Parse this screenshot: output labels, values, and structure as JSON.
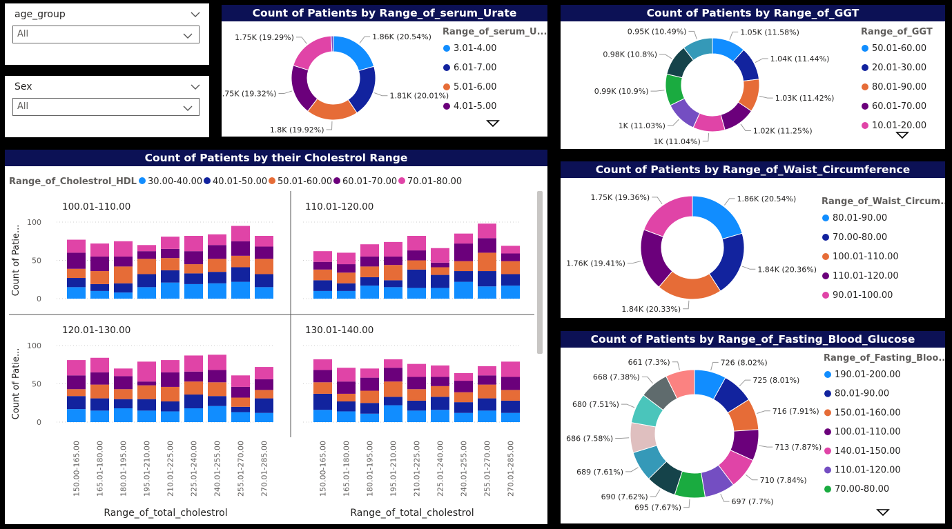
{
  "slicers": [
    {
      "label": "age_group",
      "value": "All"
    },
    {
      "label": "Sex",
      "value": "All"
    }
  ],
  "colors": {
    "title_bg": "#0c1155",
    "c_blue": "#118dff",
    "c_navy": "#12239e",
    "c_orange": "#e66c37",
    "c_purple": "#6b007b",
    "c_pink": "#e044a7",
    "c_violet": "#744ec2",
    "c_green": "#1aab40",
    "c_darkteal": "#15434a",
    "c_teal": "#3599b8",
    "c_rose": "#dfbfbf",
    "c_aqua": "#4ac5bb",
    "c_gray": "#5f6b6d",
    "c_salmon": "#fb8281",
    "c_slateblue": "#3a9ac9"
  },
  "chart_data": [
    {
      "id": "urate",
      "type": "pie",
      "title": "Count of Patients by Range_of_serum_Urate",
      "legend_title": "Range_of_serum_U...",
      "slices": [
        {
          "name": "3.01-4.00",
          "value": 1.86,
          "label": "1.86K (20.54%)",
          "color": "#118dff",
          "legend": true
        },
        {
          "name": "6.01-7.00",
          "value": 1.81,
          "label": "1.81K (20.01%)",
          "color": "#12239e",
          "legend": true
        },
        {
          "name": "5.01-6.00",
          "value": 1.8,
          "label": "1.8K (19.92%)",
          "color": "#e66c37",
          "legend": true
        },
        {
          "name": "4.01-5.00",
          "value": 1.75,
          "label": "1.75K (19.32%)",
          "color": "#6b007b",
          "legend": true
        },
        {
          "name": "",
          "value": 1.746,
          "label": "1.75K (19.29%)",
          "color": "#e044a7",
          "legend": false
        },
        {
          "name": "",
          "value": 0.08,
          "label": "",
          "color": "#744ec2",
          "legend": false
        }
      ]
    },
    {
      "id": "ggt",
      "type": "pie",
      "title": "Count of Patients by Range_of_GGT",
      "legend_title": "Range_of_GGT",
      "slices": [
        {
          "name": "50.01-60.00",
          "value": 1.05,
          "label": "1.05K (11.58%)",
          "color": "#118dff",
          "legend": true
        },
        {
          "name": "20.01-30.00",
          "value": 1.04,
          "label": "1.04K (11.44%)",
          "color": "#12239e",
          "legend": true
        },
        {
          "name": "80.01-90.00",
          "value": 1.03,
          "label": "1.03K (11.42%)",
          "color": "#e66c37",
          "legend": true
        },
        {
          "name": "60.01-70.00",
          "value": 1.02,
          "label": "1.02K (11.25%)",
          "color": "#6b007b",
          "legend": true
        },
        {
          "name": "10.01-20.00",
          "value": 1.0,
          "label": "1K (11.04%)",
          "color": "#e044a7",
          "legend": true
        },
        {
          "name": "",
          "value": 1.0,
          "label": "1K (11.03%)",
          "color": "#744ec2",
          "legend": false
        },
        {
          "name": "",
          "value": 0.99,
          "label": "0.99K (10.9%)",
          "color": "#1aab40",
          "legend": false
        },
        {
          "name": "",
          "value": 0.98,
          "label": "0.98K (10.8%)",
          "color": "#15434a",
          "legend": false
        },
        {
          "name": "",
          "value": 0.95,
          "label": "0.95K (10.49%)",
          "color": "#3599b8",
          "legend": false
        }
      ]
    },
    {
      "id": "waist",
      "type": "pie",
      "title": "Count of Patients by Range_of_Waist_Circumference",
      "legend_title": "Range_of_Waist_Circum...",
      "slices": [
        {
          "name": "80.01-90.00",
          "value": 1.86,
          "label": "1.86K (20.54%)",
          "color": "#118dff",
          "legend": true
        },
        {
          "name": "70.00-80.00",
          "value": 1.84,
          "label": "1.84K (20.36%)",
          "color": "#12239e",
          "legend": true
        },
        {
          "name": "100.01-110.00",
          "value": 1.84,
          "label": "1.84K (20.33%)",
          "color": "#e66c37",
          "legend": true
        },
        {
          "name": "110.01-120.00",
          "value": 1.76,
          "label": "1.76K (19.41%)",
          "color": "#6b007b",
          "legend": true
        },
        {
          "name": "90.01-100.00",
          "value": 1.75,
          "label": "1.75K (19.36%)",
          "color": "#e044a7",
          "legend": true
        }
      ]
    },
    {
      "id": "glucose",
      "type": "pie",
      "title": "Count of Patients by Range_of_Fasting_Blood_Glucose",
      "legend_title": "Range_of_Fasting_Bloo...",
      "slices": [
        {
          "name": "190.01-200.00",
          "value": 726,
          "label": "726 (8.02%)",
          "color": "#118dff",
          "legend": true
        },
        {
          "name": "80.01-90.00",
          "value": 725,
          "label": "725 (8.01%)",
          "color": "#12239e",
          "legend": true
        },
        {
          "name": "150.01-160.00",
          "value": 716,
          "label": "716 (7.91%)",
          "color": "#e66c37",
          "legend": true
        },
        {
          "name": "100.01-110.00",
          "value": 713,
          "label": "713 (7.87%)",
          "color": "#6b007b",
          "legend": true
        },
        {
          "name": "140.01-150.00",
          "value": 710,
          "label": "710 (7.84%)",
          "color": "#e044a7",
          "legend": true
        },
        {
          "name": "110.01-120.00",
          "value": 697,
          "label": "697 (7.7%)",
          "color": "#744ec2",
          "legend": true
        },
        {
          "name": "70.00-80.00",
          "value": 695,
          "label": "695 (7.67%)",
          "color": "#1aab40",
          "legend": true
        },
        {
          "name": "",
          "value": 690,
          "label": "690 (7.62%)",
          "color": "#15434a",
          "legend": false
        },
        {
          "name": "",
          "value": 689,
          "label": "689 (7.61%)",
          "color": "#3599b8",
          "legend": false
        },
        {
          "name": "",
          "value": 686,
          "label": "686 (7.58%)",
          "color": "#dfbfbf",
          "legend": false
        },
        {
          "name": "",
          "value": 680,
          "label": "680 (7.51%)",
          "color": "#4ac5bb",
          "legend": false
        },
        {
          "name": "",
          "value": 668,
          "label": "668 (7.38%)",
          "color": "#5f6b6d",
          "legend": false
        },
        {
          "name": "",
          "value": 661,
          "label": "661 (7.3%)",
          "color": "#fb8281",
          "legend": false
        }
      ]
    },
    {
      "id": "cholestrol",
      "type": "bar",
      "stacked": true,
      "title": "Count of Patients by their Cholestrol Range",
      "legend_title": "Range_of_Cholestrol_HDL",
      "xlabel": "Range_of_total_cholestrol",
      "ylabel": "Count of Patie...",
      "ylim": [
        0,
        100
      ],
      "yticks": [
        0,
        50,
        100
      ],
      "categories": [
        "150.00-165.00",
        "165.01-180.00",
        "180.01-195.00",
        "195.01-210.00",
        "210.01-225.00",
        "225.01-240.00",
        "240.01-255.00",
        "255.01-270.00",
        "270.01-285.00"
      ],
      "series": [
        {
          "name": "30.00-40.00",
          "color": "#118dff"
        },
        {
          "name": "40.01-50.00",
          "color": "#12239e"
        },
        {
          "name": "50.01-60.00",
          "color": "#e66c37"
        },
        {
          "name": "60.01-70.00",
          "color": "#6b007b"
        },
        {
          "name": "70.01-80.00",
          "color": "#e044a7"
        }
      ],
      "facets": [
        {
          "title": "100.01-110.00",
          "values": [
            [
              15,
              12,
              12,
              21,
              17
            ],
            [
              10,
              9,
              17,
              19,
              17
            ],
            [
              8,
              12,
              22,
              13,
              20
            ],
            [
              15,
              17,
              20,
              10,
              8
            ],
            [
              21,
              16,
              16,
              12,
              16
            ],
            [
              19,
              14,
              12,
              17,
              20
            ],
            [
              20,
              15,
              17,
              18,
              14
            ],
            [
              22,
              19,
              15,
              19,
              20
            ],
            [
              15,
              17,
              20,
              16,
              14
            ]
          ]
        },
        {
          "title": "110.01-120.00",
          "values": [
            [
              10,
              14,
              14,
              10,
              14
            ],
            [
              10,
              10,
              14,
              11,
              15
            ],
            [
              17,
              11,
              14,
              13,
              16
            ],
            [
              15,
              9,
              20,
              11,
              19
            ],
            [
              14,
              24,
              12,
              13,
              19
            ],
            [
              14,
              17,
              10,
              6,
              19
            ],
            [
              22,
              14,
              13,
              23,
              13
            ],
            [
              16,
              20,
              24,
              19,
              19
            ],
            [
              17,
              15,
              17,
              10,
              10
            ]
          ]
        },
        {
          "title": "120.01-130.00",
          "values": [
            [
              17,
              17,
              9,
              18,
              20
            ],
            [
              15,
              16,
              18,
              16,
              19
            ],
            [
              18,
              12,
              13,
              17,
              10
            ],
            [
              15,
              15,
              18,
              5,
              26
            ],
            [
              14,
              13,
              19,
              19,
              16
            ],
            [
              18,
              18,
              17,
              13,
              21
            ],
            [
              21,
              13,
              18,
              16,
              20
            ],
            [
              13,
              7,
              12,
              14,
              15
            ],
            [
              12,
              19,
              11,
              14,
              16
            ]
          ]
        },
        {
          "title": "130.01-140.00",
          "values": [
            [
              16,
              21,
              15,
              16,
              14
            ],
            [
              14,
              13,
              10,
              16,
              18
            ],
            [
              11,
              14,
              16,
              17,
              12
            ],
            [
              22,
              11,
              20,
              18,
              11
            ],
            [
              15,
              13,
              15,
              16,
              17
            ],
            [
              16,
              17,
              14,
              12,
              15
            ],
            [
              12,
              14,
              13,
              15,
              10
            ],
            [
              15,
              16,
              18,
              12,
              12
            ],
            [
              12,
              16,
              14,
              17,
              20
            ]
          ]
        }
      ]
    }
  ]
}
